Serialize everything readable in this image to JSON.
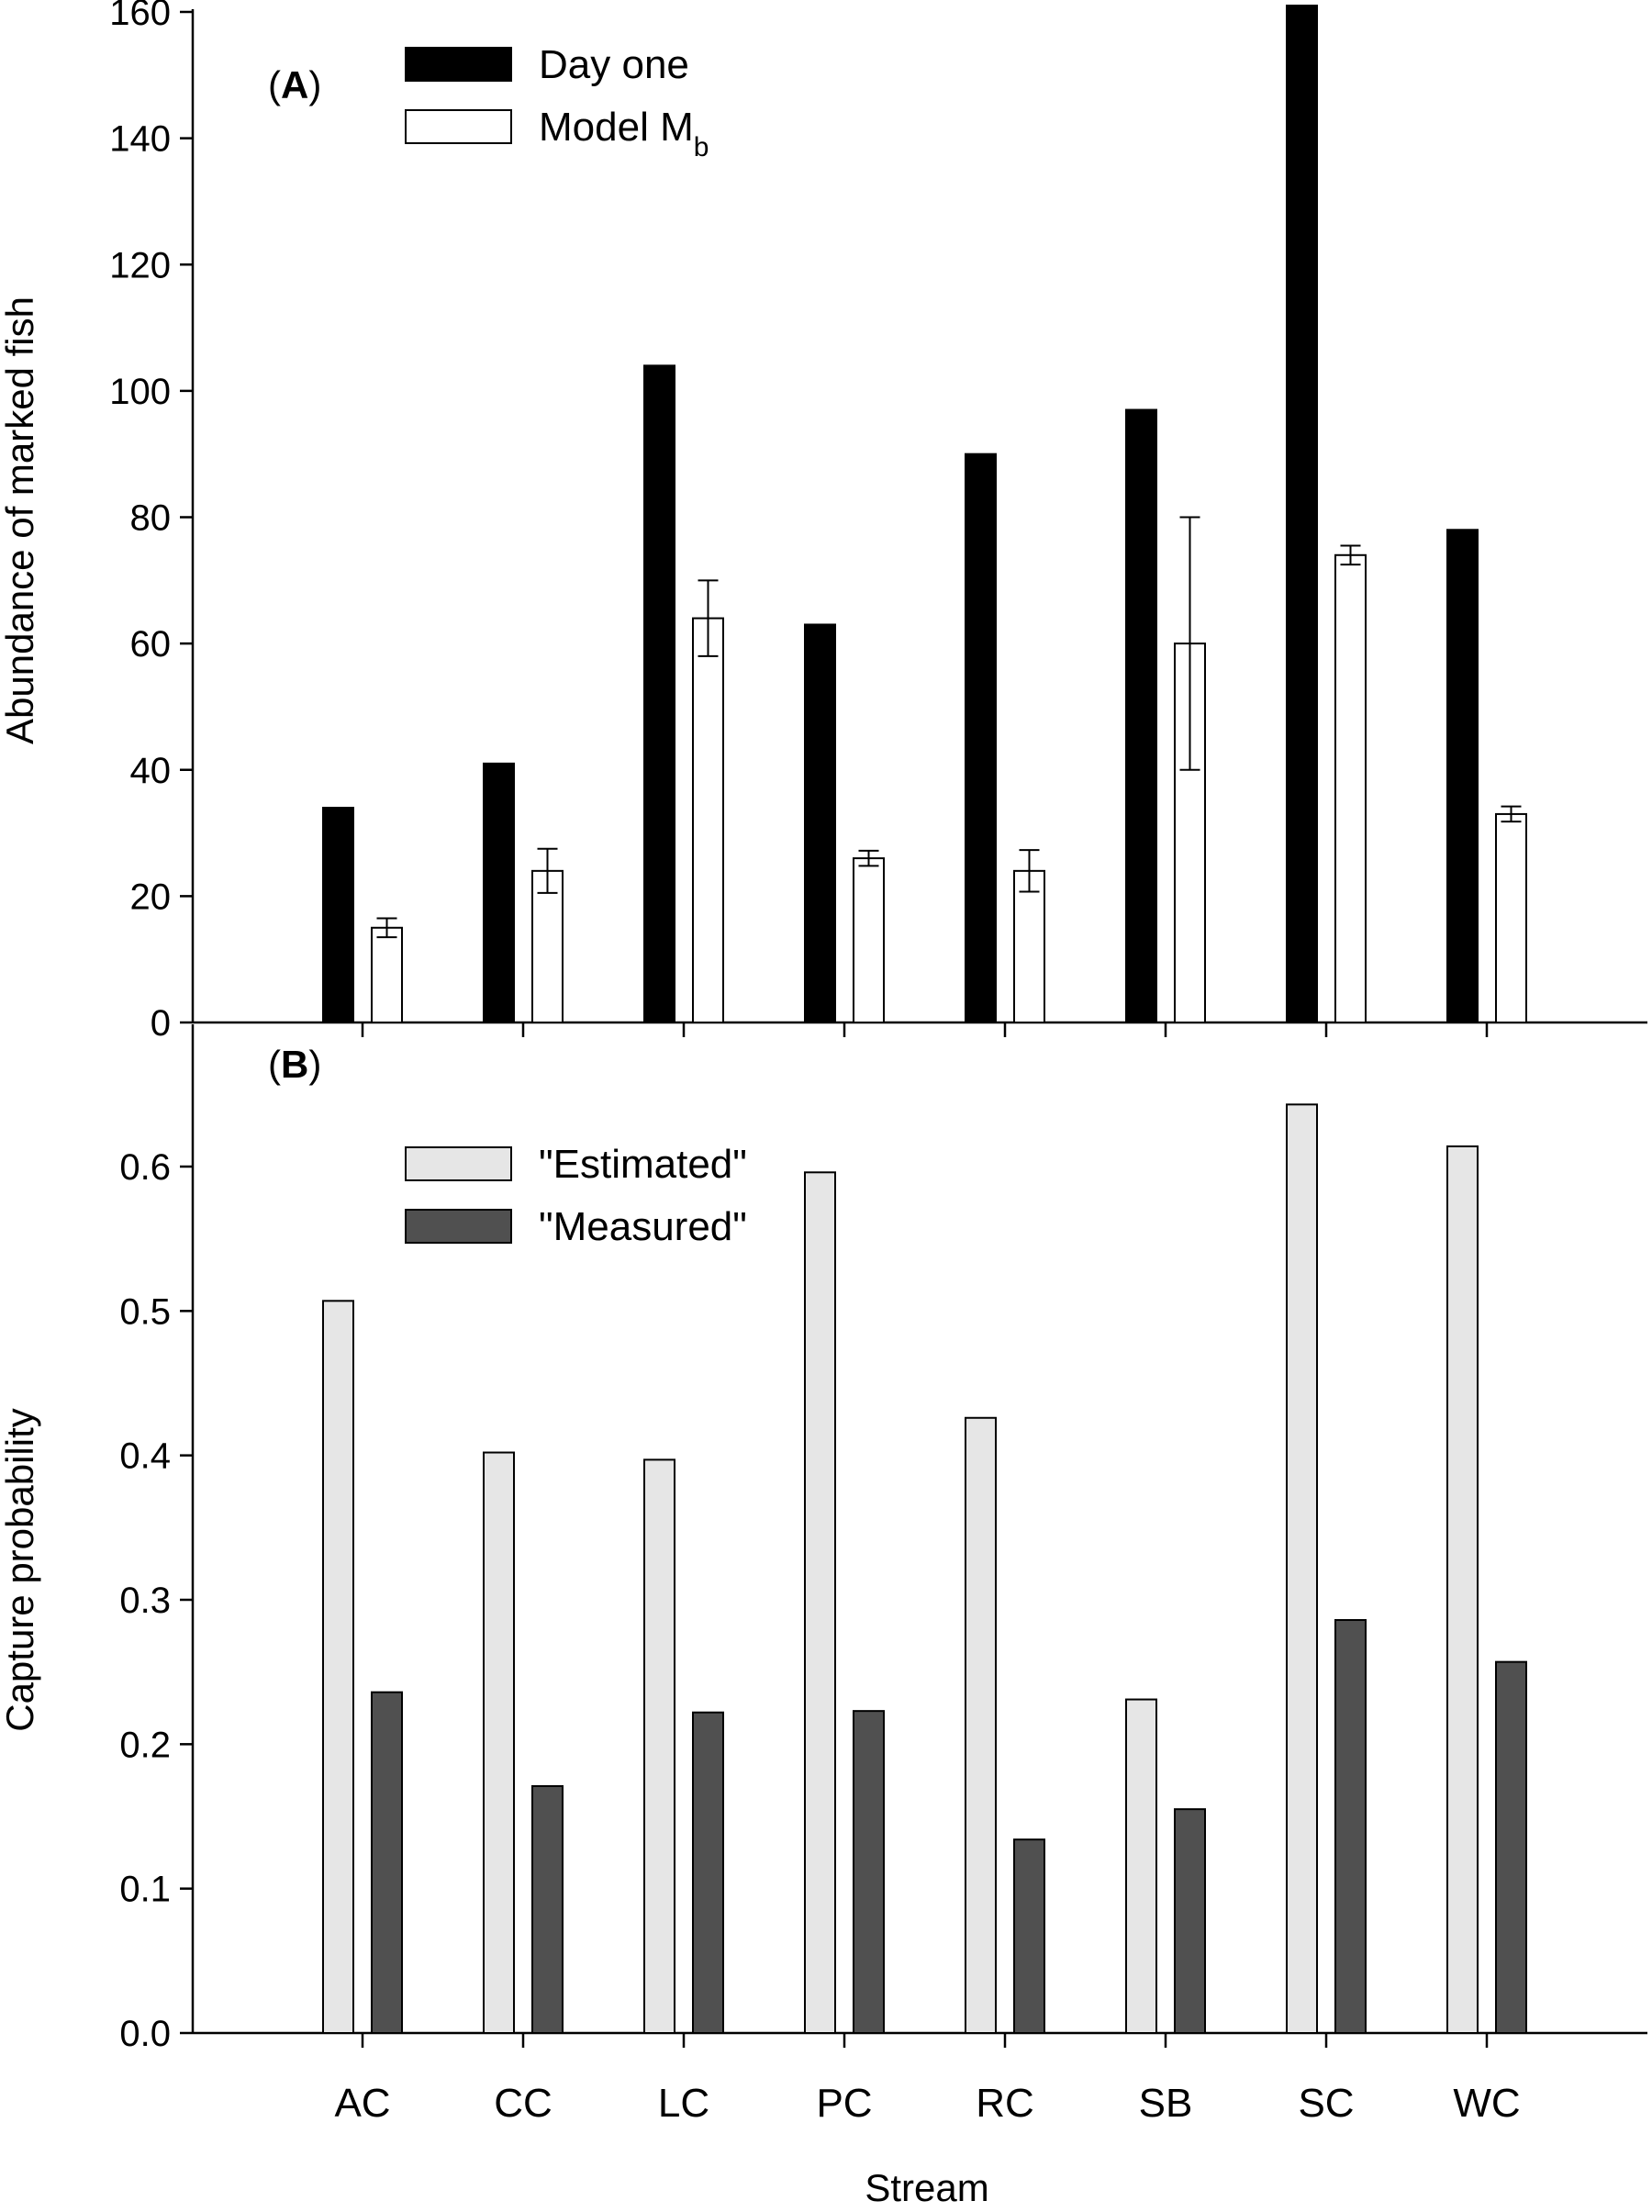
{
  "chart_data": [
    {
      "panel_label": "(A)",
      "panel_label_bold": "A",
      "type": "bar",
      "categories": [
        "AC",
        "CC",
        "LC",
        "PC",
        "RC",
        "SB",
        "SC",
        "WC"
      ],
      "ylabel": "Abundance of marked fish",
      "ylim": [
        0,
        160
      ],
      "yticks": [
        0,
        20,
        40,
        60,
        80,
        100,
        120,
        140,
        160
      ],
      "series": [
        {
          "name": "Day one",
          "values": [
            34,
            41,
            104,
            63,
            90,
            97,
            161,
            78
          ],
          "color": "#000000",
          "stroke": "#000000"
        },
        {
          "name": "Model M",
          "name_subscript": "b",
          "values": [
            15,
            24,
            64,
            26,
            24,
            60,
            74,
            33
          ],
          "errors": [
            1.5,
            3.5,
            6,
            1.2,
            3.3,
            20,
            1.5,
            1.2
          ],
          "color": "#ffffff",
          "stroke": "#000000"
        }
      ],
      "legend_position": "top-left",
      "grid": false
    },
    {
      "panel_label": "(B)",
      "panel_label_bold": "B",
      "type": "bar",
      "categories": [
        "AC",
        "CC",
        "LC",
        "PC",
        "RC",
        "SB",
        "SC",
        "WC"
      ],
      "xlabel": "Stream",
      "ylabel": "Capture probability",
      "ylim": [
        0,
        0.7
      ],
      "yticks": [
        "0.0",
        "0.1",
        "0.2",
        "0.3",
        "0.4",
        "0.5",
        "0.6"
      ],
      "series": [
        {
          "name": "\"Estimated\"",
          "values": [
            0.507,
            0.402,
            0.397,
            0.596,
            0.426,
            0.231,
            0.643,
            0.614
          ],
          "color": "#e6e6e6",
          "stroke": "#000000"
        },
        {
          "name": "\"Measured\"",
          "values": [
            0.236,
            0.171,
            0.222,
            0.223,
            0.134,
            0.155,
            0.286,
            0.257
          ],
          "color": "#505050",
          "stroke": "#000000"
        }
      ],
      "legend_position": "top-left",
      "grid": false
    }
  ]
}
